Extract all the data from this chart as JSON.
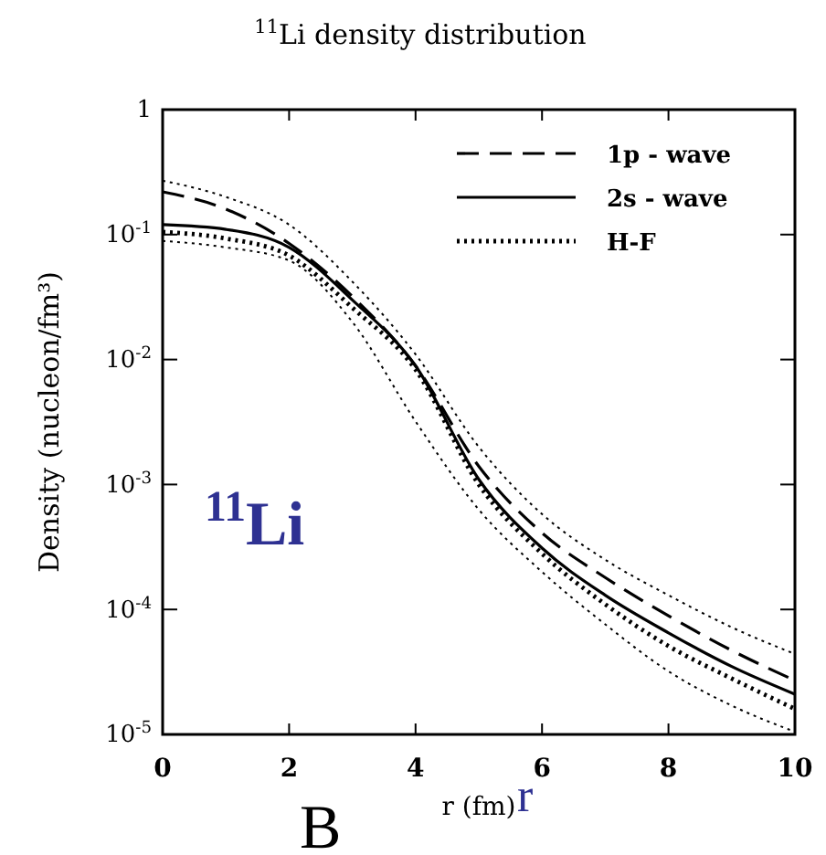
{
  "chart_data": {
    "type": "line",
    "title": "$^{11}$Li density distribution",
    "xlabel": "r (fm)",
    "ylabel": "Density (nucleon/fm³)",
    "x": [
      0,
      1,
      2,
      3,
      4,
      5,
      6,
      7,
      8,
      9,
      10
    ],
    "series": [
      {
        "name": "1p - wave",
        "color": "#000000",
        "line_style": "dashed",
        "values": [
          0.22,
          0.16,
          0.085,
          0.032,
          0.0089,
          0.0014,
          0.00041,
          0.00018,
          8.9e-05,
          4.7e-05,
          2.7e-05
        ]
      },
      {
        "name": "2s - wave",
        "color": "#000000",
        "line_style": "solid",
        "values": [
          0.12,
          0.11,
          0.079,
          0.03,
          0.0089,
          0.0011,
          0.00031,
          0.00013,
          6.5e-05,
          3.5e-05,
          2.1e-05
        ]
      },
      {
        "name": "H-F",
        "color": "#000000",
        "line_style": "dotted",
        "values": [
          0.105,
          0.093,
          0.068,
          0.026,
          0.0083,
          0.001,
          0.00028,
          0.00011,
          5.1e-05,
          2.8e-05,
          1.6e-05
        ]
      },
      {
        "color": "#000000",
        "line_style": "dotted",
        "values": [
          0.27,
          0.2,
          0.12,
          0.042,
          0.011,
          0.002,
          0.00058,
          0.00025,
          0.00013,
          7.2e-05,
          4.4e-05
        ]
      },
      {
        "color": "#000000",
        "line_style": "dotted",
        "values": [
          0.089,
          0.079,
          0.062,
          0.02,
          0.0032,
          0.00063,
          0.0002,
          7.6e-05,
          3.2e-05,
          1.7e-05,
          1.05e-05
        ]
      }
    ],
    "log": "y",
    "xlim": [
      0,
      10
    ],
    "ylim": [
      1e-05,
      1
    ],
    "xticks": [
      0,
      2,
      4,
      6,
      8,
      10
    ],
    "yticks": [
      1,
      {
        "value": 0.1,
        "label": "10$^{-1}$"
      },
      {
        "value": 0.01,
        "label": "10$^{-2}$"
      },
      {
        "value": 0.001,
        "label": "10$^{-3}$"
      },
      {
        "value": 0.0001,
        "label": "10$^{-4}$"
      },
      {
        "value": 1e-05,
        "label": "10$^{-5}$"
      }
    ],
    "grid": false,
    "legend": "top right",
    "marker": "none",
    "annotations": [
      "$^{11}$Li",
      "r",
      "B"
    ]
  }
}
